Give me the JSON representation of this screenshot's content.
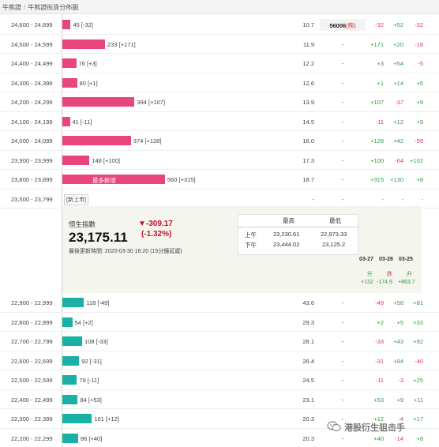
{
  "breadcrumb": [
    "牛熊證",
    "牛熊證街貨分佈圖"
  ],
  "bull_rows": [
    {
      "range": "24,600 - 24,899",
      "bar": "45 [-32]",
      "colA": "10.7",
      "colB": "56006",
      "colB_tag": "(熊)",
      "d1": "-32",
      "d2": "+52",
      "d3": "-32",
      "bar_value": 45
    },
    {
      "range": "24,500 - 24,599",
      "bar": "233 [+171]",
      "colA": "11.9",
      "colB": "-",
      "colB_tag": "",
      "d1": "+171",
      "d2": "+20",
      "d3": "-18",
      "bar_value": 233
    },
    {
      "range": "24,400 - 24,499",
      "bar": "76 [+3]",
      "colA": "12.2",
      "colB": "-",
      "colB_tag": "",
      "d1": "+3",
      "d2": "+54",
      "d3": "-5",
      "bar_value": 76
    },
    {
      "range": "24,300 - 24,399",
      "bar": "80 [+1]",
      "colA": "12.6",
      "colB": "-",
      "colB_tag": "",
      "d1": "+1",
      "d2": "+14",
      "d3": "+5",
      "bar_value": 80
    },
    {
      "range": "24,200 - 24,299",
      "bar": "394 [+107]",
      "colA": "13.9",
      "colB": "-",
      "colB_tag": "",
      "d1": "+107",
      "d2": "-37",
      "d3": "+9",
      "bar_value": 394
    },
    {
      "range": "24,100 - 24,199",
      "bar": "41 [-11]",
      "colA": "14.5",
      "colB": "-",
      "colB_tag": "",
      "d1": "-11",
      "d2": "+12",
      "d3": "+9",
      "bar_value": 41
    },
    {
      "range": "24,000 - 24,099",
      "bar": "374 [+128]",
      "colA": "16.0",
      "colB": "-",
      "colB_tag": "",
      "d1": "+128",
      "d2": "+42",
      "d3": "-59",
      "bar_value": 374
    },
    {
      "range": "23,900 - 23,999",
      "bar": "148 [+100]",
      "colA": "17.3",
      "colB": "-",
      "colB_tag": "",
      "d1": "+100",
      "d2": "-64",
      "d3": "+102",
      "bar_value": 148
    },
    {
      "range": "23,800 - 23,899",
      "bar": "560 [+315]",
      "colA": "18.7",
      "colB": "-",
      "colB_tag": "",
      "d1": "+315",
      "d2": "+130",
      "d3": "+8",
      "bar_value": 560,
      "badge": "最多新增"
    }
  ],
  "new_row": {
    "range": "23,500 - 23,799",
    "tag": "[新上市]",
    "colA": "-",
    "colB": "-",
    "d1": "-",
    "d2": "-",
    "d3": "-"
  },
  "index_panel": {
    "label": "恒生指數",
    "value": "23,175.11",
    "change": "▼-309.17",
    "pct": "(-1.32%)",
    "updated": "最後更新時間: 2020-03-30 16:20 (15分鐘延遲)",
    "table_header_high": "最高",
    "table_header_low": "最低",
    "rows": [
      {
        "label": "上午",
        "high": "23,230.61",
        "low": "22,973.33"
      },
      {
        "label": "下午",
        "high": "23,444.02",
        "low": "23,125.2"
      }
    ],
    "dates": [
      "03-27",
      "03-26",
      "03-25"
    ],
    "directions": [
      "升",
      "跌",
      "升"
    ],
    "totals": [
      "+132",
      "-174.9",
      "+863.7"
    ]
  },
  "bear_rows": [
    {
      "range": "22,900 - 22,999",
      "bar": "118 [-49]",
      "colA": "43.6",
      "colB": "-",
      "d1": "-49",
      "d2": "+58",
      "d3": "+81",
      "bar_value": 118
    },
    {
      "range": "22,800 - 22,899",
      "bar": "54 [+2]",
      "colA": "29.3",
      "colB": "-",
      "d1": "+2",
      "d2": "+5",
      "d3": "+33",
      "bar_value": 54
    },
    {
      "range": "22,700 - 22,799",
      "bar": "108 [-33]",
      "colA": "28.1",
      "colB": "-",
      "d1": "-33",
      "d2": "+43",
      "d3": "+92",
      "bar_value": 108
    },
    {
      "range": "22,600 - 22,699",
      "bar": "92 [-31]",
      "colA": "26.4",
      "colB": "-",
      "d1": "-31",
      "d2": "+94",
      "d3": "-40",
      "bar_value": 92
    },
    {
      "range": "22,500 - 22,599",
      "bar": "79 [-11]",
      "colA": "24.5",
      "colB": "-",
      "d1": "-11",
      "d2": "-3",
      "d3": "+25",
      "bar_value": 79
    },
    {
      "range": "22,400 - 22,499",
      "bar": "84 [+53]",
      "colA": "23.1",
      "colB": "-",
      "d1": "+53",
      "d2": "+9",
      "d3": "+11",
      "bar_value": 84
    },
    {
      "range": "22,300 - 22,399",
      "bar": "161 [+12]",
      "colA": "20.3",
      "colB": "-",
      "d1": "+12",
      "d2": "-4",
      "d3": "+17",
      "bar_value": 161
    },
    {
      "range": "22,200 - 22,299",
      "bar": "86 [+40]",
      "colA": "20.3",
      "colB": "-",
      "d1": "+40",
      "d2": "-14",
      "d3": "+8",
      "bar_value": 86
    }
  ],
  "watermark": "港股衍生狙击手",
  "colors": {
    "bull": "#e8457a",
    "bear": "#1bb0a6",
    "positive": "#2e9e3a",
    "negative": "#e0395c"
  }
}
